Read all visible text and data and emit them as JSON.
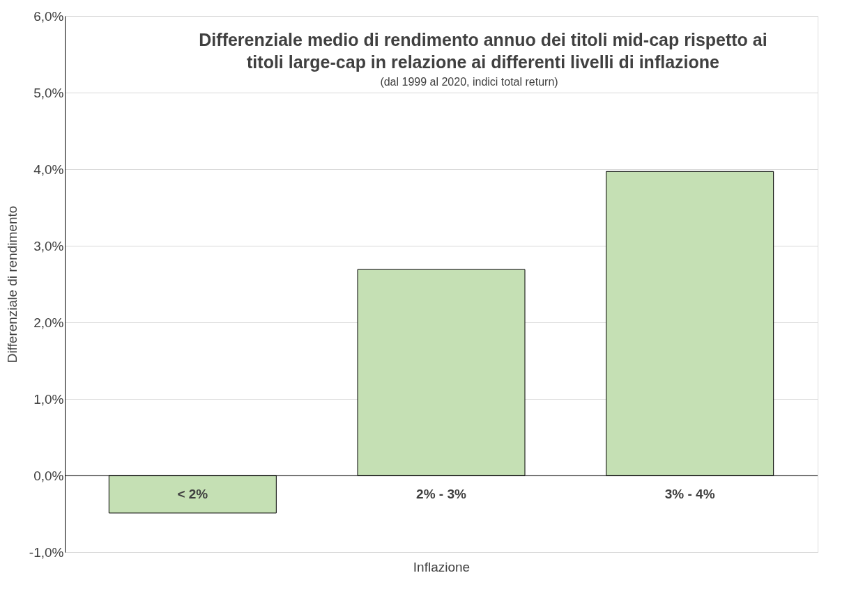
{
  "chart_data": {
    "type": "bar",
    "title": "Differenziale medio di rendimento annuo dei titoli mid-cap rispetto ai titoli large-cap in relazione ai differenti livelli di inflazione",
    "subtitle": "(dal 1999 al 2020, indici total return)",
    "xlabel": "Inflazione",
    "ylabel": "Differenziale di rendimento",
    "categories": [
      "< 2%",
      "2% - 3%",
      "3% - 4%"
    ],
    "values": [
      -0.49,
      2.69,
      3.97
    ],
    "color": "#c5e0b4",
    "ylim": [
      -1,
      6
    ],
    "yticks": [
      {
        "value": -1,
        "label": "-1,0%"
      },
      {
        "value": 0,
        "label": "0,0%"
      },
      {
        "value": 1,
        "label": "1,0%"
      },
      {
        "value": 2,
        "label": "2,0%"
      },
      {
        "value": 3,
        "label": "3,0%"
      },
      {
        "value": 4,
        "label": "4,0%"
      },
      {
        "value": 5,
        "label": "5,0%"
      },
      {
        "value": 6,
        "label": "6,0%"
      }
    ],
    "grid": "y"
  }
}
